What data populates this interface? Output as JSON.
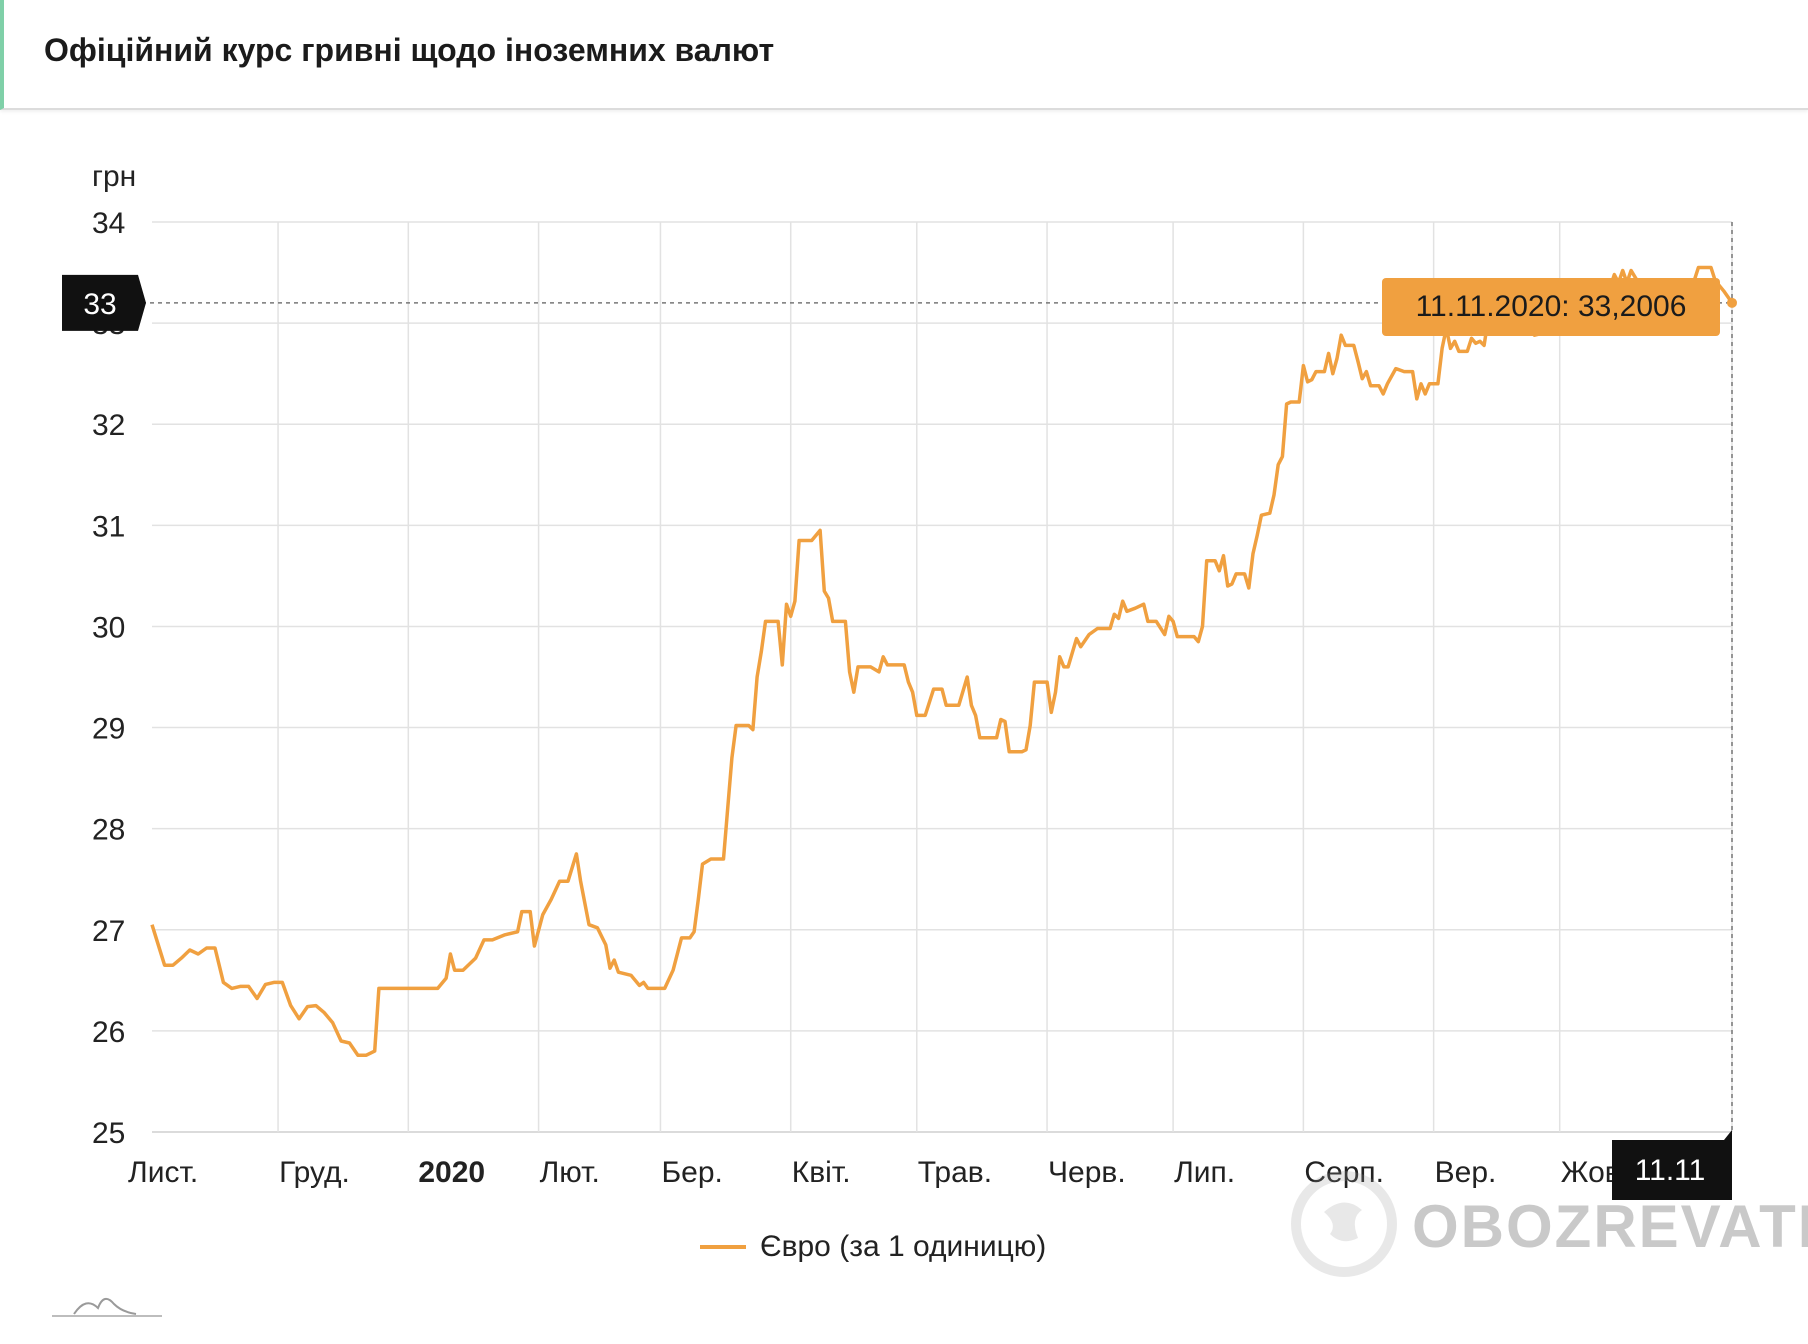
{
  "header": {
    "title": "Офіційний курс гривні щодо іноземних валют"
  },
  "branding": {
    "watermark": "OBOZREVATEL"
  },
  "chart_data": {
    "type": "line",
    "ylabel": "грн",
    "ylim": [
      25,
      34
    ],
    "yticks": [
      25,
      26,
      27,
      28,
      29,
      30,
      31,
      32,
      33,
      34
    ],
    "x_tick_labels": [
      "Лист.",
      "Груд.",
      "2020",
      "Лют.",
      "Бер.",
      "Квіт.",
      "Трав.",
      "Черв.",
      "Лип.",
      "Серп.",
      "Вер.",
      "Жовт."
    ],
    "x_tick_dates": [
      "2019-11-01",
      "2019-12-01",
      "2020-01-01",
      "2020-02-01",
      "2020-03-01",
      "2020-04-01",
      "2020-05-01",
      "2020-06-01",
      "2020-07-01",
      "2020-08-01",
      "2020-09-01",
      "2020-10-01"
    ],
    "x_range": [
      "2019-11-01",
      "2020-11-11"
    ],
    "grid": true,
    "legend_position": "bottom",
    "series": [
      {
        "name": "Євро (за 1 одиницю)",
        "color": "#f0a040",
        "points": [
          [
            "2019-11-01",
            27.05
          ],
          [
            "2019-11-04",
            26.65
          ],
          [
            "2019-11-06",
            26.65
          ],
          [
            "2019-11-08",
            26.72
          ],
          [
            "2019-11-10",
            26.8
          ],
          [
            "2019-11-12",
            26.76
          ],
          [
            "2019-11-14",
            26.82
          ],
          [
            "2019-11-16",
            26.82
          ],
          [
            "2019-11-18",
            26.48
          ],
          [
            "2019-11-20",
            26.42
          ],
          [
            "2019-11-22",
            26.44
          ],
          [
            "2019-11-24",
            26.44
          ],
          [
            "2019-11-26",
            26.32
          ],
          [
            "2019-11-28",
            26.46
          ],
          [
            "2019-11-30",
            26.48
          ],
          [
            "2019-12-02",
            26.48
          ],
          [
            "2019-12-04",
            26.25
          ],
          [
            "2019-12-06",
            26.12
          ],
          [
            "2019-12-08",
            26.24
          ],
          [
            "2019-12-10",
            26.25
          ],
          [
            "2019-12-12",
            26.18
          ],
          [
            "2019-12-14",
            26.08
          ],
          [
            "2019-12-16",
            25.9
          ],
          [
            "2019-12-18",
            25.88
          ],
          [
            "2019-12-20",
            25.76
          ],
          [
            "2019-12-22",
            25.76
          ],
          [
            "2019-12-24",
            25.8
          ],
          [
            "2019-12-25",
            26.42
          ],
          [
            "2019-12-27",
            26.42
          ],
          [
            "2019-12-29",
            26.42
          ],
          [
            "2020-01-01",
            26.42
          ],
          [
            "2020-01-05",
            26.42
          ],
          [
            "2020-01-08",
            26.42
          ],
          [
            "2020-01-10",
            26.52
          ],
          [
            "2020-01-11",
            26.76
          ],
          [
            "2020-01-12",
            26.6
          ],
          [
            "2020-01-14",
            26.6
          ],
          [
            "2020-01-17",
            26.72
          ],
          [
            "2020-01-19",
            26.9
          ],
          [
            "2020-01-21",
            26.9
          ],
          [
            "2020-01-24",
            26.95
          ],
          [
            "2020-01-27",
            26.98
          ],
          [
            "2020-01-28",
            27.18
          ],
          [
            "2020-01-30",
            27.18
          ],
          [
            "2020-01-31",
            26.84
          ],
          [
            "2020-02-02",
            27.15
          ],
          [
            "2020-02-04",
            27.3
          ],
          [
            "2020-02-06",
            27.48
          ],
          [
            "2020-02-08",
            27.48
          ],
          [
            "2020-02-10",
            27.75
          ],
          [
            "2020-02-11",
            27.48
          ],
          [
            "2020-02-13",
            27.05
          ],
          [
            "2020-02-15",
            27.02
          ],
          [
            "2020-02-17",
            26.85
          ],
          [
            "2020-02-18",
            26.62
          ],
          [
            "2020-02-19",
            26.7
          ],
          [
            "2020-02-20",
            26.58
          ],
          [
            "2020-02-23",
            26.55
          ],
          [
            "2020-02-25",
            26.45
          ],
          [
            "2020-02-26",
            26.48
          ],
          [
            "2020-02-27",
            26.42
          ],
          [
            "2020-02-29",
            26.42
          ],
          [
            "2020-03-02",
            26.42
          ],
          [
            "2020-03-04",
            26.6
          ],
          [
            "2020-03-06",
            26.92
          ],
          [
            "2020-03-08",
            26.92
          ],
          [
            "2020-03-09",
            26.98
          ],
          [
            "2020-03-10",
            27.3
          ],
          [
            "2020-03-11",
            27.65
          ],
          [
            "2020-03-13",
            27.7
          ],
          [
            "2020-03-16",
            27.7
          ],
          [
            "2020-03-17",
            28.2
          ],
          [
            "2020-03-18",
            28.7
          ],
          [
            "2020-03-19",
            29.02
          ],
          [
            "2020-03-22",
            29.02
          ],
          [
            "2020-03-23",
            28.98
          ],
          [
            "2020-03-24",
            29.5
          ],
          [
            "2020-03-25",
            29.75
          ],
          [
            "2020-03-26",
            30.05
          ],
          [
            "2020-03-29",
            30.05
          ],
          [
            "2020-03-30",
            29.62
          ],
          [
            "2020-03-31",
            30.22
          ],
          [
            "2020-04-01",
            30.1
          ],
          [
            "2020-04-02",
            30.25
          ],
          [
            "2020-04-03",
            30.85
          ],
          [
            "2020-04-06",
            30.85
          ],
          [
            "2020-04-08",
            30.95
          ],
          [
            "2020-04-09",
            30.35
          ],
          [
            "2020-04-10",
            30.28
          ],
          [
            "2020-04-11",
            30.05
          ],
          [
            "2020-04-14",
            30.05
          ],
          [
            "2020-04-15",
            29.55
          ],
          [
            "2020-04-16",
            29.35
          ],
          [
            "2020-04-17",
            29.6
          ],
          [
            "2020-04-20",
            29.6
          ],
          [
            "2020-04-22",
            29.55
          ],
          [
            "2020-04-23",
            29.7
          ],
          [
            "2020-04-24",
            29.62
          ],
          [
            "2020-04-28",
            29.62
          ],
          [
            "2020-04-29",
            29.45
          ],
          [
            "2020-04-30",
            29.35
          ],
          [
            "2020-05-01",
            29.12
          ],
          [
            "2020-05-03",
            29.12
          ],
          [
            "2020-05-05",
            29.38
          ],
          [
            "2020-05-07",
            29.38
          ],
          [
            "2020-05-08",
            29.22
          ],
          [
            "2020-05-11",
            29.22
          ],
          [
            "2020-05-13",
            29.5
          ],
          [
            "2020-05-14",
            29.22
          ],
          [
            "2020-05-15",
            29.12
          ],
          [
            "2020-05-16",
            28.9
          ],
          [
            "2020-05-20",
            28.9
          ],
          [
            "2020-05-21",
            29.08
          ],
          [
            "2020-05-22",
            29.06
          ],
          [
            "2020-05-23",
            28.76
          ],
          [
            "2020-05-26",
            28.76
          ],
          [
            "2020-05-27",
            28.78
          ],
          [
            "2020-05-28",
            29.02
          ],
          [
            "2020-05-29",
            29.45
          ],
          [
            "2020-05-31",
            29.45
          ],
          [
            "2020-06-01",
            29.45
          ],
          [
            "2020-06-02",
            29.15
          ],
          [
            "2020-06-03",
            29.35
          ],
          [
            "2020-06-04",
            29.7
          ],
          [
            "2020-06-05",
            29.6
          ],
          [
            "2020-06-06",
            29.6
          ],
          [
            "2020-06-08",
            29.88
          ],
          [
            "2020-06-09",
            29.8
          ],
          [
            "2020-06-11",
            29.92
          ],
          [
            "2020-06-13",
            29.98
          ],
          [
            "2020-06-16",
            29.98
          ],
          [
            "2020-06-17",
            30.12
          ],
          [
            "2020-06-18",
            30.08
          ],
          [
            "2020-06-19",
            30.25
          ],
          [
            "2020-06-20",
            30.15
          ],
          [
            "2020-06-22",
            30.18
          ],
          [
            "2020-06-24",
            30.22
          ],
          [
            "2020-06-25",
            30.05
          ],
          [
            "2020-06-27",
            30.05
          ],
          [
            "2020-06-29",
            29.92
          ],
          [
            "2020-06-30",
            30.1
          ],
          [
            "2020-07-01",
            30.05
          ],
          [
            "2020-07-02",
            29.9
          ],
          [
            "2020-07-06",
            29.9
          ],
          [
            "2020-07-07",
            29.85
          ],
          [
            "2020-07-08",
            30.0
          ],
          [
            "2020-07-09",
            30.65
          ],
          [
            "2020-07-11",
            30.65
          ],
          [
            "2020-07-12",
            30.55
          ],
          [
            "2020-07-13",
            30.7
          ],
          [
            "2020-07-14",
            30.4
          ],
          [
            "2020-07-15",
            30.42
          ],
          [
            "2020-07-16",
            30.52
          ],
          [
            "2020-07-18",
            30.52
          ],
          [
            "2020-07-19",
            30.38
          ],
          [
            "2020-07-20",
            30.72
          ],
          [
            "2020-07-21",
            30.9
          ],
          [
            "2020-07-22",
            31.1
          ],
          [
            "2020-07-24",
            31.12
          ],
          [
            "2020-07-25",
            31.3
          ],
          [
            "2020-07-26",
            31.6
          ],
          [
            "2020-07-27",
            31.68
          ],
          [
            "2020-07-28",
            32.2
          ],
          [
            "2020-07-29",
            32.22
          ],
          [
            "2020-07-31",
            32.22
          ],
          [
            "2020-08-01",
            32.58
          ],
          [
            "2020-08-02",
            32.42
          ],
          [
            "2020-08-03",
            32.44
          ],
          [
            "2020-08-04",
            32.52
          ],
          [
            "2020-08-06",
            32.52
          ],
          [
            "2020-08-07",
            32.7
          ],
          [
            "2020-08-08",
            32.5
          ],
          [
            "2020-08-09",
            32.65
          ],
          [
            "2020-08-10",
            32.88
          ],
          [
            "2020-08-11",
            32.78
          ],
          [
            "2020-08-13",
            32.78
          ],
          [
            "2020-08-14",
            32.62
          ],
          [
            "2020-08-15",
            32.45
          ],
          [
            "2020-08-16",
            32.52
          ],
          [
            "2020-08-17",
            32.38
          ],
          [
            "2020-08-19",
            32.38
          ],
          [
            "2020-08-20",
            32.3
          ],
          [
            "2020-08-21",
            32.4
          ],
          [
            "2020-08-23",
            32.55
          ],
          [
            "2020-08-25",
            32.52
          ],
          [
            "2020-08-27",
            32.52
          ],
          [
            "2020-08-28",
            32.25
          ],
          [
            "2020-08-29",
            32.4
          ],
          [
            "2020-08-30",
            32.3
          ],
          [
            "2020-08-31",
            32.4
          ],
          [
            "2020-09-02",
            32.4
          ],
          [
            "2020-09-03",
            32.75
          ],
          [
            "2020-09-04",
            32.95
          ],
          [
            "2020-09-05",
            32.75
          ],
          [
            "2020-09-06",
            32.82
          ],
          [
            "2020-09-07",
            32.72
          ],
          [
            "2020-09-09",
            32.72
          ],
          [
            "2020-09-10",
            32.85
          ],
          [
            "2020-09-11",
            32.8
          ],
          [
            "2020-09-12",
            32.82
          ],
          [
            "2020-09-13",
            32.78
          ],
          [
            "2020-09-14",
            33.05
          ],
          [
            "2020-09-18",
            33.05
          ],
          [
            "2020-09-22",
            33.0
          ],
          [
            "2020-09-25",
            32.88
          ],
          [
            "2020-09-27",
            32.9
          ],
          [
            "2020-09-29",
            32.9
          ],
          [
            "2020-10-01",
            33.05
          ],
          [
            "2020-10-04",
            33.15
          ],
          [
            "2020-10-07",
            33.25
          ],
          [
            "2020-10-10",
            33.32
          ],
          [
            "2020-10-13",
            33.35
          ],
          [
            "2020-10-14",
            33.48
          ],
          [
            "2020-10-15",
            33.4
          ],
          [
            "2020-10-16",
            33.52
          ],
          [
            "2020-10-17",
            33.4
          ],
          [
            "2020-10-18",
            33.52
          ],
          [
            "2020-10-20",
            33.38
          ],
          [
            "2020-10-22",
            33.3
          ],
          [
            "2020-10-25",
            33.32
          ],
          [
            "2020-10-28",
            33.3
          ],
          [
            "2020-10-31",
            33.38
          ],
          [
            "2020-11-02",
            33.42
          ],
          [
            "2020-11-03",
            33.55
          ],
          [
            "2020-11-06",
            33.55
          ],
          [
            "2020-11-07",
            33.42
          ],
          [
            "2020-11-09",
            33.32
          ],
          [
            "2020-11-11",
            33.2006
          ]
        ]
      }
    ],
    "crosshair": {
      "y_label": "33",
      "x_label": "11.11",
      "tooltip": "11.11.2020: 33,2006"
    }
  }
}
